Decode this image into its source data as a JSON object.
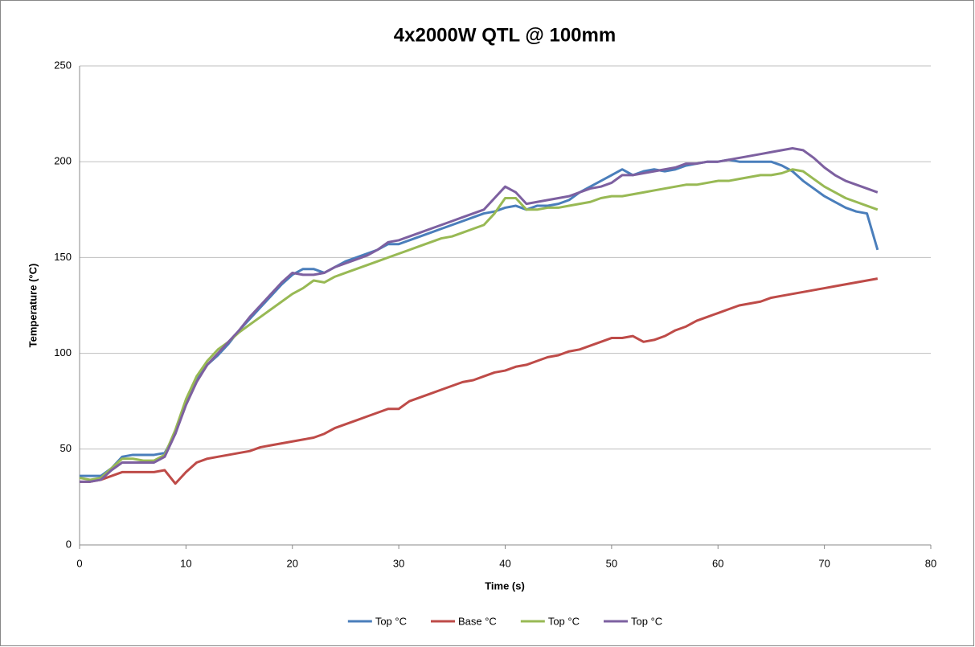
{
  "chart_data": {
    "type": "line",
    "title": "4x2000W QTL @ 100mm",
    "xlabel": "Time (s)",
    "ylabel": "Temperature (°C)",
    "x": [
      0,
      1,
      2,
      3,
      4,
      5,
      6,
      7,
      8,
      9,
      10,
      11,
      12,
      13,
      14,
      15,
      16,
      17,
      18,
      19,
      20,
      21,
      22,
      23,
      24,
      25,
      26,
      27,
      28,
      29,
      30,
      31,
      32,
      33,
      34,
      35,
      36,
      37,
      38,
      39,
      40,
      41,
      42,
      43,
      44,
      45,
      46,
      47,
      48,
      49,
      50,
      51,
      52,
      53,
      54,
      55,
      56,
      57,
      58,
      59,
      60,
      61,
      62,
      63,
      64,
      65,
      66,
      67,
      68,
      69,
      70,
      71,
      72,
      73,
      74,
      75
    ],
    "series": [
      {
        "name": "Top °C",
        "color": "#4a7ebb",
        "values": [
          36,
          36,
          36,
          40,
          46,
          47,
          47,
          47,
          48,
          58,
          74,
          86,
          94,
          99,
          105,
          112,
          118,
          124,
          130,
          136,
          141,
          144,
          144,
          142,
          145,
          148,
          150,
          152,
          154,
          157,
          157,
          159,
          161,
          163,
          165,
          167,
          169,
          171,
          173,
          174,
          176,
          177,
          175,
          177,
          177,
          178,
          180,
          184,
          187,
          190,
          193,
          196,
          193,
          195,
          196,
          195,
          196,
          198,
          199,
          200,
          200,
          201,
          200,
          200,
          200,
          200,
          198,
          195,
          190,
          186,
          182,
          179,
          176,
          174,
          173,
          154
        ]
      },
      {
        "name": "Base °C",
        "color": "#be4b48",
        "values": [
          33,
          33,
          34,
          36,
          38,
          38,
          38,
          38,
          39,
          32,
          38,
          43,
          45,
          46,
          47,
          48,
          49,
          51,
          52,
          53,
          54,
          55,
          56,
          58,
          61,
          63,
          65,
          67,
          69,
          71,
          71,
          75,
          77,
          79,
          81,
          83,
          85,
          86,
          88,
          90,
          91,
          93,
          94,
          96,
          98,
          99,
          101,
          102,
          104,
          106,
          108,
          108,
          109,
          106,
          107,
          109,
          112,
          114,
          117,
          119,
          121,
          123,
          125,
          126,
          127,
          129,
          130,
          131,
          132,
          133,
          134,
          135,
          136,
          137,
          138,
          139
        ]
      },
      {
        "name": "Top °C",
        "color": "#98b954",
        "values": [
          35,
          34,
          35,
          40,
          45,
          45,
          44,
          44,
          47,
          60,
          76,
          88,
          96,
          102,
          106,
          111,
          115,
          119,
          123,
          127,
          131,
          134,
          138,
          137,
          140,
          142,
          144,
          146,
          148,
          150,
          152,
          154,
          156,
          158,
          160,
          161,
          163,
          165,
          167,
          173,
          181,
          181,
          175,
          175,
          176,
          176,
          177,
          178,
          179,
          181,
          182,
          182,
          183,
          184,
          185,
          186,
          187,
          188,
          188,
          189,
          190,
          190,
          191,
          192,
          193,
          193,
          194,
          196,
          195,
          191,
          187,
          184,
          181,
          179,
          177,
          175
        ]
      },
      {
        "name": "Top °C",
        "color": "#7d60a0",
        "values": [
          33,
          33,
          34,
          39,
          43,
          43,
          43,
          43,
          46,
          58,
          73,
          85,
          94,
          100,
          106,
          112,
          119,
          125,
          131,
          137,
          142,
          141,
          141,
          142,
          145,
          147,
          149,
          151,
          154,
          158,
          159,
          161,
          163,
          165,
          167,
          169,
          171,
          173,
          175,
          181,
          187,
          184,
          178,
          179,
          180,
          181,
          182,
          184,
          186,
          187,
          189,
          193,
          193,
          194,
          195,
          196,
          197,
          199,
          199,
          200,
          200,
          201,
          202,
          203,
          204,
          205,
          206,
          207,
          206,
          202,
          197,
          193,
          190,
          188,
          186,
          184
        ]
      }
    ],
    "xlim": [
      0,
      80
    ],
    "xticks": [
      0,
      10,
      20,
      30,
      40,
      50,
      60,
      70,
      80
    ],
    "ylim": [
      0,
      250
    ],
    "yticks": [
      0,
      50,
      100,
      150,
      200,
      250
    ],
    "grid": true,
    "legend": "bottom"
  }
}
